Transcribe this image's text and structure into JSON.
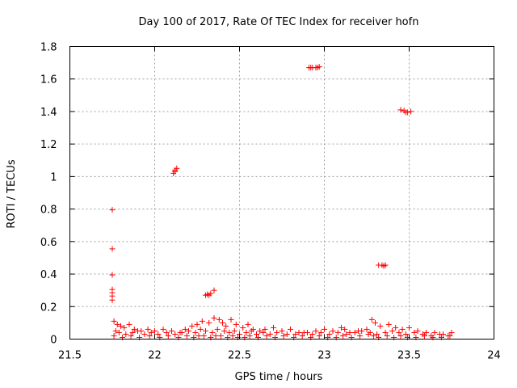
{
  "chart_data": {
    "type": "scatter",
    "title": "Day 100 of 2017, Rate Of TEC Index for receiver hofn",
    "xlabel": "GPS time / hours",
    "ylabel": "ROTI / TECUs",
    "xlim": [
      21.5,
      24
    ],
    "ylim": [
      0,
      1.8
    ],
    "xticks": [
      21.5,
      22,
      22.5,
      23,
      23.5,
      24
    ],
    "xtick_labels": [
      "21.5",
      "22",
      "22.5",
      "23",
      "23.5",
      "24"
    ],
    "yticks": [
      0,
      0.2,
      0.4,
      0.6,
      0.8,
      1,
      1.2,
      1.4,
      1.6,
      1.8
    ],
    "ytick_labels": [
      "0",
      "0.2",
      "0.4",
      "0.6",
      "0.8",
      "1",
      "1.2",
      "1.4",
      "1.6",
      "1.8"
    ],
    "grid": true,
    "marker": "+",
    "color": "#ff0000",
    "series": [
      {
        "values_x": [
          21.75,
          21.75,
          21.75,
          21.75,
          21.75,
          21.75,
          21.75,
          22.11,
          22.12,
          22.13,
          22.12,
          22.3,
          22.31,
          22.33,
          22.35,
          22.32,
          22.91,
          22.93,
          22.95,
          22.97,
          22.92,
          22.96,
          23.32,
          23.34,
          23.36,
          23.35,
          23.45,
          23.47,
          23.49,
          23.51,
          23.48,
          21.76,
          21.78,
          21.8,
          21.82,
          21.85,
          21.88,
          21.92,
          21.96,
          22.0,
          22.05,
          22.1,
          22.15,
          22.18,
          22.22,
          22.25,
          22.28,
          22.32,
          22.35,
          22.38,
          22.4,
          22.42,
          22.45,
          22.48,
          22.52,
          22.55,
          22.58,
          22.62,
          22.65,
          22.7,
          22.75,
          22.8,
          22.85,
          22.9,
          22.95,
          23.0,
          23.05,
          23.1,
          23.12,
          23.15,
          23.2,
          23.25,
          23.28,
          23.3,
          23.33,
          23.38,
          23.42,
          23.46,
          23.5,
          23.55,
          23.6,
          23.65,
          23.7,
          23.75,
          21.77,
          21.79,
          21.83,
          21.87,
          21.9,
          21.94,
          21.98,
          22.02,
          22.07,
          22.12,
          22.16,
          22.2,
          22.24,
          22.27,
          22.3,
          22.34,
          22.37,
          22.41,
          22.44,
          22.47,
          22.5,
          22.54,
          22.57,
          22.6,
          22.64,
          22.68,
          22.72,
          22.78,
          22.83,
          22.88,
          22.93,
          22.98,
          23.03,
          23.08,
          23.13,
          23.18,
          23.22,
          23.27,
          23.31,
          23.36,
          23.4,
          23.44,
          23.48,
          23.53,
          23.58,
          23.63,
          23.68,
          23.73,
          21.76,
          21.81,
          21.86,
          21.91,
          21.97,
          22.03,
          22.08,
          22.14,
          22.19,
          22.23,
          22.26,
          22.29,
          22.33,
          22.36,
          22.39,
          22.43,
          22.46,
          22.49,
          22.53,
          22.56,
          22.61,
          22.66,
          22.71,
          22.76,
          22.82,
          22.87,
          22.92,
          22.97,
          23.02,
          23.07,
          23.11,
          23.16,
          23.21,
          23.26,
          23.29,
          23.32,
          23.37,
          23.41,
          23.45,
          23.49,
          23.54,
          23.59,
          23.64,
          23.69,
          23.74
        ],
        "values_y": [
          0.795,
          0.555,
          0.395,
          0.305,
          0.285,
          0.265,
          0.24,
          1.02,
          1.04,
          1.05,
          1.03,
          0.27,
          0.275,
          0.28,
          0.3,
          0.27,
          1.67,
          1.67,
          1.67,
          1.675,
          1.67,
          1.67,
          0.455,
          0.455,
          0.455,
          0.45,
          1.41,
          1.405,
          1.395,
          1.4,
          1.395,
          0.11,
          0.09,
          0.08,
          0.07,
          0.09,
          0.06,
          0.05,
          0.06,
          0.05,
          0.06,
          0.05,
          0.04,
          0.06,
          0.08,
          0.09,
          0.11,
          0.1,
          0.13,
          0.12,
          0.1,
          0.08,
          0.12,
          0.09,
          0.07,
          0.09,
          0.06,
          0.05,
          0.06,
          0.07,
          0.05,
          0.06,
          0.04,
          0.04,
          0.05,
          0.06,
          0.05,
          0.07,
          0.06,
          0.04,
          0.05,
          0.06,
          0.12,
          0.1,
          0.08,
          0.09,
          0.07,
          0.06,
          0.07,
          0.05,
          0.04,
          0.04,
          0.03,
          0.04,
          0.05,
          0.04,
          0.03,
          0.04,
          0.05,
          0.03,
          0.04,
          0.03,
          0.04,
          0.03,
          0.04,
          0.05,
          0.04,
          0.06,
          0.05,
          0.04,
          0.06,
          0.05,
          0.04,
          0.05,
          0.03,
          0.04,
          0.05,
          0.03,
          0.04,
          0.03,
          0.04,
          0.03,
          0.03,
          0.04,
          0.03,
          0.04,
          0.03,
          0.04,
          0.03,
          0.04,
          0.05,
          0.04,
          0.03,
          0.04,
          0.05,
          0.04,
          0.03,
          0.04,
          0.03,
          0.02,
          0.03,
          0.02,
          0.02,
          0.01,
          0.02,
          0.01,
          0.02,
          0.01,
          0.02,
          0.01,
          0.02,
          0.01,
          0.02,
          0.02,
          0.01,
          0.02,
          0.02,
          0.01,
          0.02,
          0.01,
          0.01,
          0.02,
          0.01,
          0.02,
          0.01,
          0.02,
          0.01,
          0.02,
          0.01,
          0.02,
          0.01,
          0.01,
          0.02,
          0.01,
          0.02,
          0.03,
          0.02,
          0.01,
          0.02,
          0.01,
          0.02,
          0.01,
          0.01,
          0.02,
          0.01,
          0.01,
          0.02
        ]
      }
    ]
  }
}
